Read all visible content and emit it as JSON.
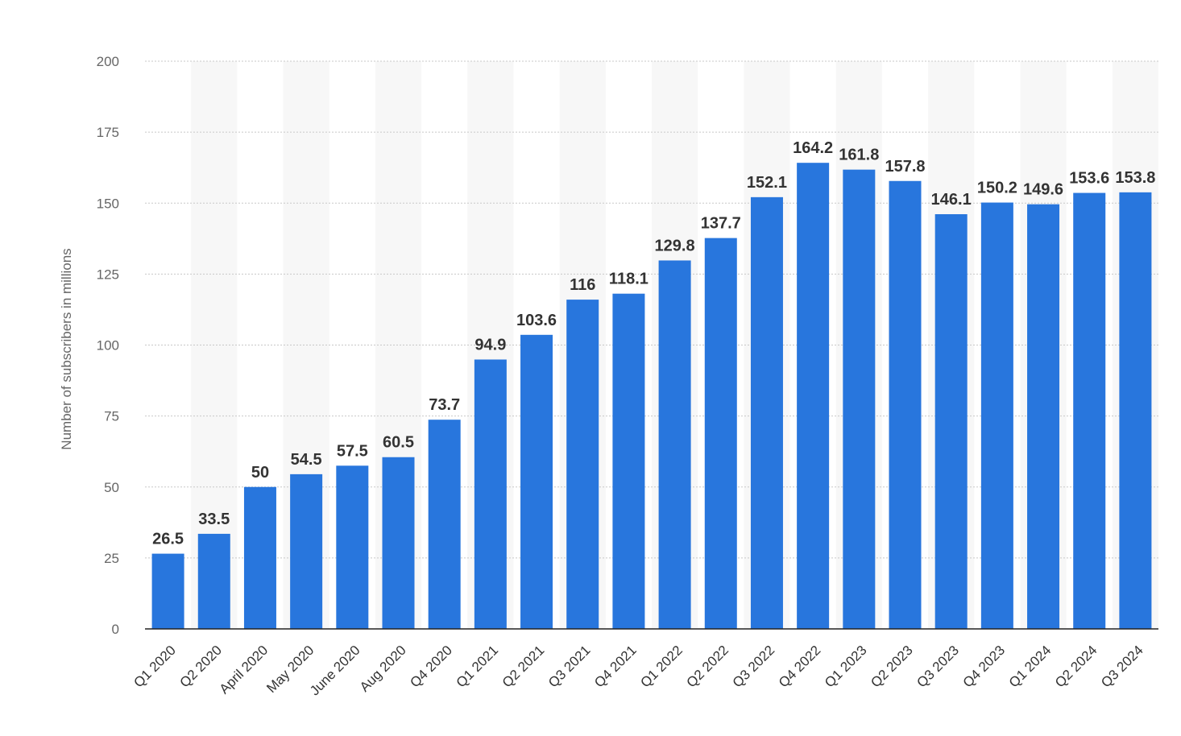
{
  "chart_data": {
    "type": "bar",
    "ylabel": "Number of subscribers in millions",
    "ylim": [
      0,
      200
    ],
    "yticks": [
      0,
      25,
      50,
      75,
      100,
      125,
      150,
      175,
      200
    ],
    "grid": true,
    "legend": "none",
    "bar_color": "#2876dd",
    "band_color": "#f7f7f7",
    "categories": [
      "Q1 2020",
      "Q2 2020",
      "April 2020",
      "May 2020",
      "June 2020",
      "Aug 2020",
      "Q4 2020",
      "Q1 2021",
      "Q2 2021",
      "Q3 2021",
      "Q4 2021",
      "Q1 2022",
      "Q2 2022",
      "Q3 2022",
      "Q4 2022",
      "Q1 2023",
      "Q2 2023",
      "Q3 2023",
      "Q4 2023",
      "Q1 2024",
      "Q2 2024",
      "Q3 2024"
    ],
    "values": [
      26.5,
      33.5,
      50,
      54.5,
      57.5,
      60.5,
      73.7,
      94.9,
      103.6,
      116,
      118.1,
      129.8,
      137.7,
      152.1,
      164.2,
      161.8,
      157.8,
      146.1,
      150.2,
      149.6,
      153.6,
      153.8
    ],
    "data_labels": [
      "26.5",
      "33.5",
      "50",
      "54.5",
      "57.5",
      "60.5",
      "73.7",
      "94.9",
      "103.6",
      "116",
      "118.1",
      "129.8",
      "137.7",
      "152.1",
      "164.2",
      "161.8",
      "157.8",
      "146.1",
      "150.2",
      "149.6",
      "153.6",
      "153.8"
    ]
  }
}
